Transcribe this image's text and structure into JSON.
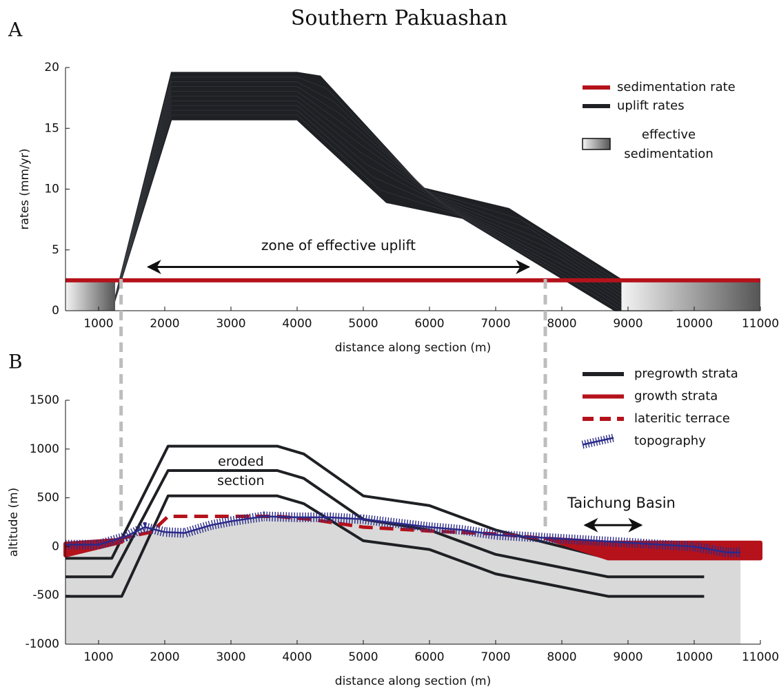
{
  "title": "Southern Pakuashan",
  "chart_data": [
    {
      "type": "line",
      "panel_label": "A",
      "x_label": "distance along section (m)",
      "y_label": "rates (mm/yr)",
      "xlim": [
        500,
        11000
      ],
      "xticks": [
        1000,
        2000,
        3000,
        4000,
        5000,
        6000,
        7000,
        8000,
        9000,
        10000,
        11000
      ],
      "ylim": [
        0,
        20
      ],
      "yticks": [
        0,
        5,
        10,
        15,
        20
      ],
      "series": [
        {
          "name": "sedimentation rate",
          "color": "#b5121b",
          "x": [
            500,
            11000
          ],
          "values": [
            2.5,
            2.5
          ]
        },
        {
          "name": "uplift rates",
          "color": "#1e2024",
          "x": [
            1200,
            2100,
            4000,
            4350,
            5900,
            7200,
            9650
          ],
          "values": [
            0,
            19.6,
            19.6,
            19.3,
            10.1,
            8.4,
            0
          ],
          "x_lower": [
            1200,
            2100,
            4000,
            5350,
            6500,
            8800
          ],
          "values_lower": [
            0,
            15.7,
            15.7,
            8.9,
            7.6,
            0
          ]
        },
        {
          "name": "effective sedimentation",
          "color": "#555555",
          "extents": [
            [
              500,
              1250
            ],
            [
              8900,
              11000
            ]
          ],
          "values": [
            2.5,
            2.5
          ]
        }
      ],
      "annotations": [
        {
          "text": "zone of effective uplift",
          "x": [
            1750,
            7500
          ],
          "y": 3.6
        }
      ]
    },
    {
      "type": "line",
      "panel_label": "B",
      "x_label": "distance along section (m)",
      "y_label": "altitude (m)",
      "xlim": [
        500,
        11000
      ],
      "xticks": [
        1000,
        2000,
        3000,
        4000,
        5000,
        6000,
        7000,
        8000,
        9000,
        10000,
        11000
      ],
      "ylim": [
        -1000,
        1500
      ],
      "yticks": [
        -1000,
        -500,
        0,
        500,
        1000,
        1500
      ],
      "series": [
        {
          "name": "pregrowth strata",
          "color": "#1e2024",
          "lines": [
            {
              "x": [
                500,
                1200,
                2050,
                3700,
                4100,
                5000,
                6000,
                7000,
                8700,
                10150
              ],
              "values": [
                -120,
                -120,
                1030,
                1030,
                950,
                520,
                420,
                170,
                -120,
                -120
              ]
            },
            {
              "x": [
                500,
                1200,
                2050,
                3700,
                4100,
                5000,
                6000,
                7000,
                8700,
                10150
              ],
              "values": [
                -310,
                -310,
                780,
                780,
                700,
                280,
                170,
                -80,
                -310,
                -310
              ]
            },
            {
              "x": [
                500,
                1350,
                2050,
                3700,
                4100,
                5000,
                6000,
                7000,
                8700,
                10150
              ],
              "values": [
                -510,
                -510,
                520,
                520,
                440,
                60,
                -30,
                -280,
                -510,
                -510
              ]
            }
          ]
        },
        {
          "name": "growth strata",
          "color": "#b5121b",
          "pieces": [
            {
              "x": [
                500,
                1350
              ],
              "values": [
                30,
                70
              ],
              "base": [
                -90,
                50
              ]
            },
            {
              "x": [
                7800,
                8700,
                11000
              ],
              "values": [
                80,
                40,
                40
              ],
              "base": [
                80,
                -120,
                -120
              ]
            }
          ]
        },
        {
          "name": "lateritic terrace",
          "color": "#b5121b",
          "dashed": true,
          "x": [
            1300,
            1800,
            2050,
            3700,
            4200,
            5000,
            6000,
            7000,
            7800
          ],
          "values": [
            80,
            150,
            310,
            310,
            280,
            200,
            160,
            130,
            80
          ]
        },
        {
          "name": "topography",
          "color": "#2b2a8a",
          "fill": "#d9d9d9",
          "x": [
            500,
            1000,
            1400,
            1700,
            2000,
            2300,
            2700,
            3000,
            3500,
            4000,
            4500,
            5000,
            5500,
            6000,
            6500,
            7000,
            7500,
            8000,
            8500,
            9000,
            9500,
            10000,
            10500,
            10700
          ],
          "values": [
            20,
            20,
            100,
            200,
            150,
            140,
            220,
            260,
            310,
            300,
            300,
            280,
            240,
            200,
            170,
            120,
            100,
            80,
            60,
            40,
            20,
            0,
            -60,
            -60
          ]
        }
      ],
      "annotations": [
        {
          "text": "eroded section",
          "x": [
            3150
          ],
          "y": 870
        },
        {
          "text": "Taichung Basin",
          "x": [
            8350,
            9200
          ],
          "y": 220,
          "label_x": 8900,
          "label_y": 440
        }
      ]
    }
  ],
  "guides": {
    "x": [
      1340,
      7750
    ]
  }
}
